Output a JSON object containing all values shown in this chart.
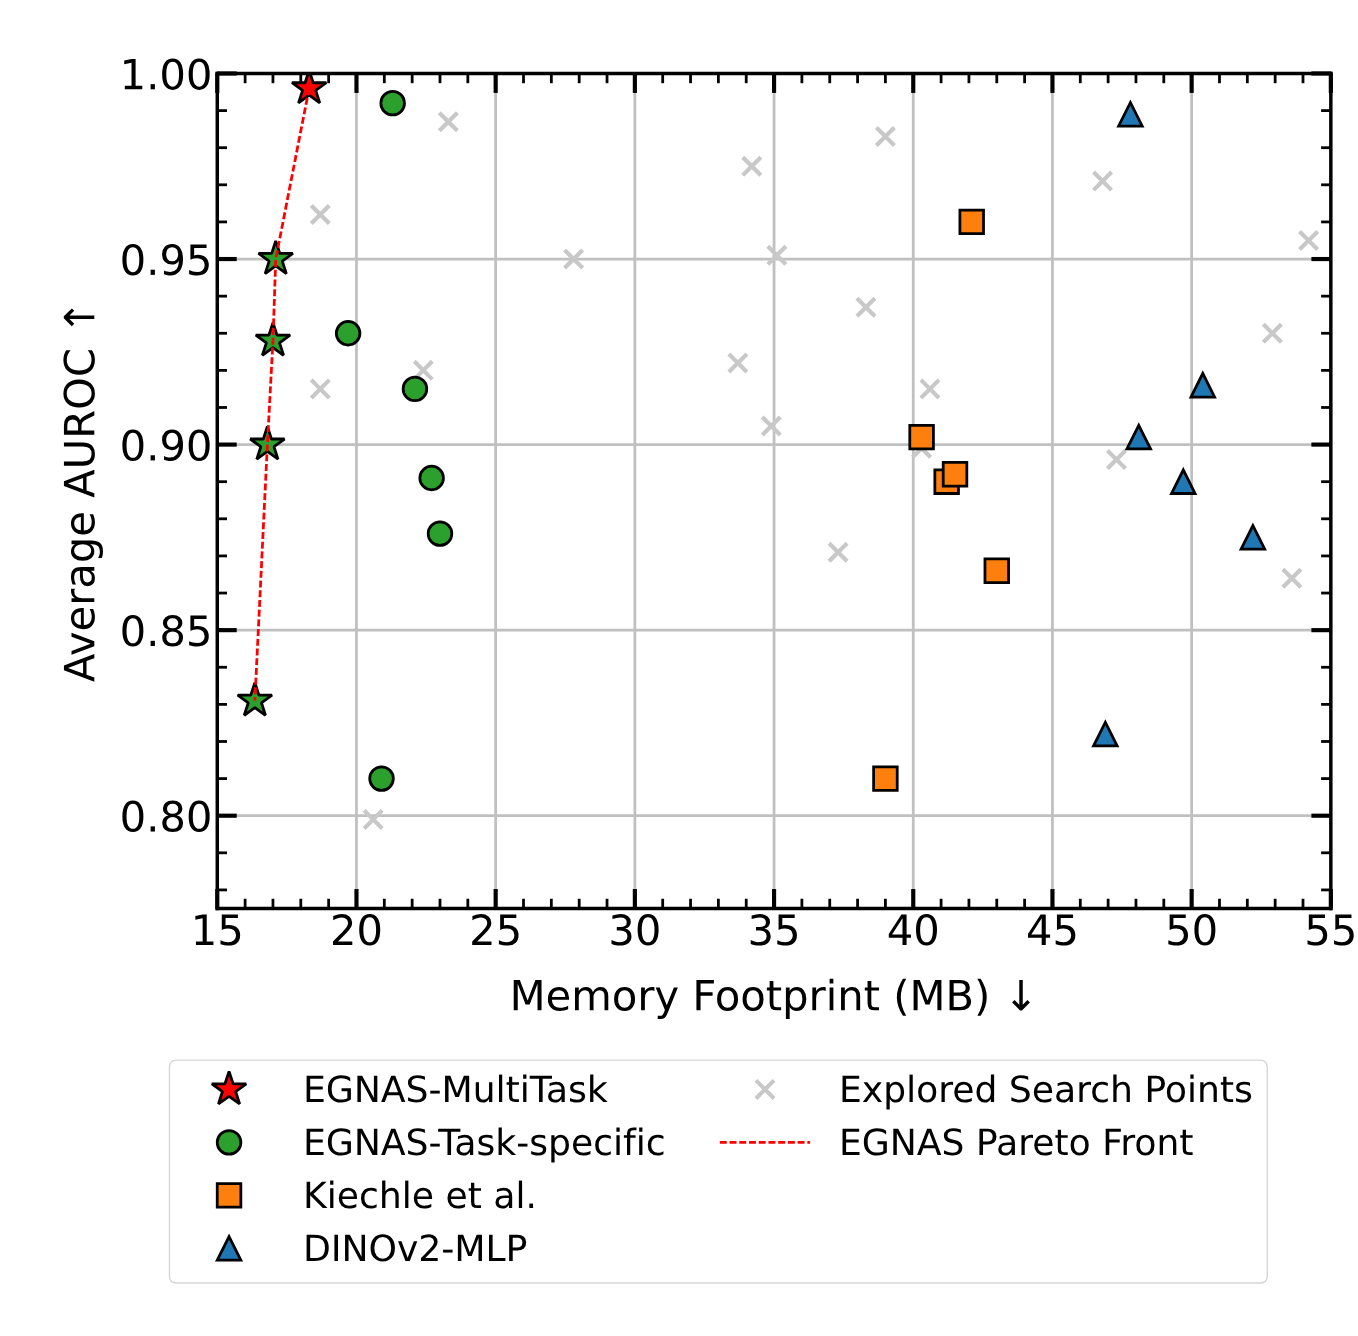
{
  "chart_data": {
    "type": "scatter",
    "xlabel": "Memory Footprint (MB) ↓",
    "ylabel": "Average AUROC ↑",
    "xlim": [
      15,
      55
    ],
    "xticks": [
      15,
      20,
      25,
      30,
      35,
      40,
      45,
      50,
      55
    ],
    "ylim": [
      0.775,
      1.0
    ],
    "yticks": [
      {
        "value": 0.8,
        "label": "0.80"
      },
      {
        "value": 0.85,
        "label": "0.85"
      },
      {
        "value": 0.9,
        "label": "0.90"
      },
      {
        "value": 0.95,
        "label": "0.95"
      },
      {
        "value": 1.0,
        "label": "1.00"
      }
    ],
    "grid": true,
    "legend": "bottom",
    "series": [
      {
        "name": "EGNAS-MultiTask",
        "marker": "star",
        "color": "#ff0000",
        "x": [
          18.3
        ],
        "values": [
          0.996
        ]
      },
      {
        "name": "EGNAS-Task-specific",
        "marker": "circle",
        "color": "#2ca02c",
        "x": [
          21.3,
          19.7,
          22.1,
          22.7,
          23.0,
          20.9
        ],
        "values": [
          0.992,
          0.93,
          0.915,
          0.891,
          0.876,
          0.81
        ]
      },
      {
        "name": "Kiechle et al.",
        "marker": "square",
        "color": "#ff7f0e",
        "x": [
          42.1,
          40.3,
          41.2,
          41.5,
          43.0,
          39.0
        ],
        "values": [
          0.96,
          0.902,
          0.89,
          0.892,
          0.866,
          0.81
        ]
      },
      {
        "name": "DINOv2-MLP",
        "marker": "triangle",
        "color": "#1f77b4",
        "x": [
          47.8,
          50.4,
          48.1,
          49.7,
          52.2,
          46.9
        ],
        "values": [
          0.989,
          0.916,
          0.902,
          0.89,
          0.875,
          0.822
        ]
      },
      {
        "name": "Explored Search Points",
        "marker": "cross",
        "color": "#c8c8c8",
        "x": [
          23.3,
          18.7,
          18.7,
          22.4,
          27.8,
          34.2,
          35.1,
          33.7,
          34.9,
          38.3,
          39.0,
          40.6,
          40.3,
          37.3,
          20.6,
          46.8,
          47.3,
          52.9,
          54.2,
          53.6
        ],
        "values": [
          0.987,
          0.962,
          0.915,
          0.92,
          0.95,
          0.975,
          0.951,
          0.922,
          0.905,
          0.937,
          0.983,
          0.915,
          0.899,
          0.871,
          0.799,
          0.971,
          0.896,
          0.93,
          0.955,
          0.864
        ]
      },
      {
        "name": "EGNAS Pareto Front",
        "type": "line",
        "line_style": "dashed",
        "marker": "none",
        "color": "#ff0000",
        "x": [
          18.3,
          17.1,
          17.0,
          16.8,
          16.35
        ],
        "values": [
          0.996,
          0.95,
          0.928,
          0.9,
          0.831
        ]
      },
      {
        "marker": "star",
        "color": "#2ca02c",
        "x": [
          17.1,
          17.0,
          16.8,
          16.35
        ],
        "values": [
          0.95,
          0.928,
          0.9,
          0.831
        ]
      }
    ]
  }
}
